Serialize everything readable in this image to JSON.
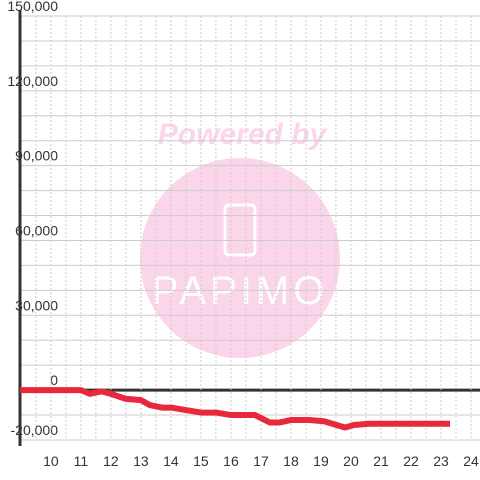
{
  "chart_data": {
    "type": "line",
    "watermark": {
      "top": "Powered by",
      "brand": "PAPIMO"
    },
    "x": [
      8.97,
      11.0,
      11.3,
      11.7,
      12.0,
      12.5,
      13.0,
      13.3,
      13.7,
      14.0,
      14.5,
      15.0,
      15.5,
      16.0,
      16.8,
      17.3,
      17.6,
      18.0,
      18.6,
      19.1,
      19.8,
      20.1,
      20.6,
      23.3
    ],
    "series": [
      {
        "color": "#e8283c",
        "values": [
          0,
          0,
          -1500,
          -500,
          -1500,
          -3500,
          -4000,
          -6000,
          -7000,
          -7000,
          -8000,
          -9000,
          -9000,
          -10000,
          -10000,
          -13000,
          -13000,
          -12000,
          -12000,
          -12500,
          -15000,
          -14000,
          -13500,
          -13500
        ]
      }
    ],
    "xlim": [
      8.97,
      24.3
    ],
    "xticks": [
      10,
      11,
      12,
      13,
      14,
      15,
      16,
      17,
      18,
      19,
      20,
      21,
      22,
      23,
      24
    ],
    "xminorticks": [
      9.5,
      10.5,
      11.5,
      12.5,
      13.5,
      14.5,
      15.5,
      16.5,
      17.5,
      18.5,
      19.5,
      20.5,
      21.5,
      22.5,
      23.5
    ],
    "ylim": [
      -20000,
      150000
    ],
    "yticks": [
      {
        "value": -20000,
        "label": "-20,000"
      },
      0,
      {
        "value": 30000,
        "label": "30,000"
      },
      {
        "value": 60000,
        "label": "60,000"
      },
      {
        "value": 90000,
        "label": "90,000"
      },
      {
        "value": 120000,
        "label": "120,000"
      },
      {
        "value": 150000,
        "label": "150,000"
      }
    ],
    "yminorticks": [
      -10000,
      10000,
      20000,
      40000,
      50000,
      70000,
      80000,
      100000,
      110000,
      130000,
      140000
    ],
    "grid": true
  }
}
